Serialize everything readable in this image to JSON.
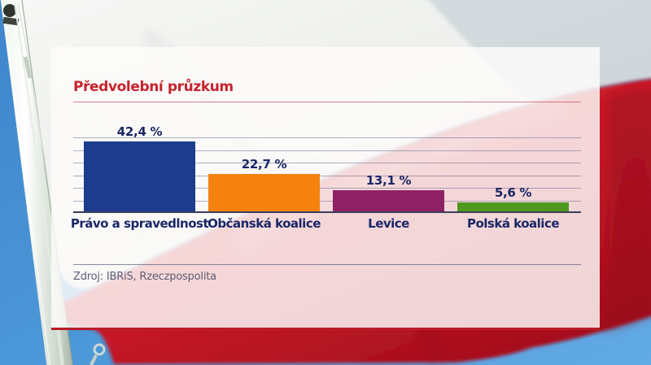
{
  "header": {
    "title": "Předvolební průzkum"
  },
  "source": {
    "label": "Zdroj: IBRiS, Rzeczpospolita"
  },
  "chart_data": {
    "type": "bar",
    "title": "Předvolební průzkum",
    "categories": [
      "Právo a spravedlnost",
      "Občanská koalice",
      "Levice",
      "Polská koalice"
    ],
    "values": [
      42.4,
      22.7,
      13.1,
      5.6
    ],
    "value_labels": [
      "42,4 %",
      "22,7 %",
      "13,1 %",
      "5,6 %"
    ],
    "unit": "%",
    "ylim": [
      0,
      45
    ],
    "grid": true,
    "gridline_count": 6,
    "legend": "none",
    "bar_colors": [
      "#1e3c8e",
      "#f5820e",
      "#8e2163",
      "#4f9a1e"
    ],
    "source": "Zdroj: IBRiS, Rzeczpospolita"
  },
  "colors": {
    "title_red": "#c6222d",
    "label_navy": "#1a2766",
    "panel_bottom_red": "#bb1c27",
    "baseline_navy": "#3b3d5a"
  }
}
